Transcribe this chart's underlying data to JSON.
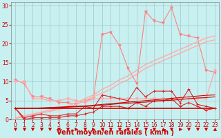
{
  "background_color": "#c8f0f0",
  "grid_color": "#a0c8c8",
  "x_values": [
    0,
    1,
    2,
    3,
    4,
    5,
    6,
    7,
    8,
    9,
    10,
    11,
    12,
    13,
    14,
    15,
    16,
    17,
    18,
    19,
    20,
    21,
    22,
    23
  ],
  "series": [
    {
      "name": "gust_pink",
      "color": "#ff8080",
      "alpha": 1.0,
      "lw": 0.8,
      "marker": "v",
      "markersize": 2.5,
      "y": [
        10.5,
        9.5,
        6.0,
        6.0,
        5.5,
        4.5,
        4.5,
        4.0,
        5.0,
        5.5,
        22.5,
        23.0,
        19.5,
        13.5,
        9.5,
        28.5,
        26.0,
        25.5,
        29.5,
        22.5,
        22.0,
        21.5,
        13.0,
        12.5
      ]
    },
    {
      "name": "trend_upper",
      "color": "#ffaaaa",
      "alpha": 1.0,
      "lw": 1.0,
      "marker": null,
      "markersize": 0,
      "y": [
        0.5,
        1.0,
        1.5,
        2.0,
        2.5,
        3.0,
        3.5,
        4.5,
        5.5,
        6.5,
        8.0,
        9.0,
        10.5,
        11.5,
        13.0,
        14.5,
        15.5,
        16.5,
        17.5,
        18.5,
        19.5,
        20.5,
        21.5,
        22.0
      ]
    },
    {
      "name": "trend_mid",
      "color": "#ffaaaa",
      "alpha": 1.0,
      "lw": 1.0,
      "marker": null,
      "markersize": 0,
      "y": [
        0.3,
        0.7,
        1.2,
        1.7,
        2.2,
        2.7,
        3.2,
        4.0,
        5.0,
        6.0,
        7.0,
        8.0,
        9.5,
        10.5,
        12.0,
        13.5,
        14.5,
        15.5,
        16.5,
        17.5,
        18.5,
        19.5,
        20.5,
        21.0
      ]
    },
    {
      "name": "flat_pink",
      "color": "#ffaaaa",
      "alpha": 1.0,
      "lw": 1.0,
      "marker": "v",
      "markersize": 2.5,
      "y": [
        10.0,
        10.0,
        5.5,
        5.5,
        5.0,
        5.0,
        5.5,
        5.0,
        4.5,
        5.5,
        5.5,
        5.5,
        5.5,
        5.5,
        5.5,
        5.5,
        5.5,
        5.5,
        5.5,
        5.5,
        5.5,
        5.5,
        5.5,
        13.0
      ]
    },
    {
      "name": "inst_upper",
      "color": "#dd2222",
      "alpha": 1.0,
      "lw": 0.8,
      "marker": "+",
      "markersize": 3,
      "y": [
        3.0,
        0.5,
        1.0,
        1.5,
        1.0,
        1.0,
        1.5,
        1.5,
        3.5,
        3.0,
        6.5,
        6.0,
        5.5,
        5.0,
        8.5,
        6.0,
        7.5,
        7.5,
        7.5,
        4.5,
        8.0,
        4.0,
        3.5,
        3.0
      ]
    },
    {
      "name": "inst_lower",
      "color": "#dd2222",
      "alpha": 1.0,
      "lw": 0.8,
      "marker": "+",
      "markersize": 3,
      "y": [
        3.0,
        0.0,
        0.5,
        0.5,
        0.5,
        0.5,
        1.0,
        1.0,
        1.5,
        2.0,
        3.5,
        3.5,
        3.5,
        3.0,
        4.5,
        3.5,
        5.0,
        5.0,
        5.5,
        3.5,
        4.5,
        3.5,
        2.5,
        3.0
      ]
    },
    {
      "name": "trend_dark_upper",
      "color": "#cc0000",
      "alpha": 1.0,
      "lw": 0.8,
      "marker": null,
      "markersize": 0,
      "y": [
        3.0,
        3.0,
        3.0,
        3.1,
        3.2,
        3.3,
        3.4,
        3.5,
        3.6,
        3.8,
        4.0,
        4.2,
        4.4,
        4.6,
        4.8,
        5.0,
        5.2,
        5.4,
        5.6,
        5.8,
        6.0,
        6.2,
        6.4,
        6.5
      ]
    },
    {
      "name": "trend_dark_lower",
      "color": "#cc0000",
      "alpha": 1.0,
      "lw": 0.8,
      "marker": null,
      "markersize": 0,
      "y": [
        3.0,
        3.0,
        3.0,
        3.0,
        3.1,
        3.2,
        3.3,
        3.4,
        3.5,
        3.6,
        3.8,
        4.0,
        4.2,
        4.3,
        4.5,
        4.6,
        4.8,
        5.0,
        5.1,
        5.3,
        5.5,
        5.7,
        5.8,
        6.0
      ]
    },
    {
      "name": "flat_dark",
      "color": "#cc0000",
      "alpha": 1.0,
      "lw": 1.2,
      "marker": null,
      "markersize": 0,
      "y": [
        3.0,
        3.0,
        3.0,
        3.0,
        3.0,
        3.0,
        3.0,
        3.0,
        3.0,
        3.0,
        3.0,
        3.0,
        3.0,
        3.0,
        3.0,
        3.0,
        3.0,
        3.0,
        3.0,
        3.0,
        3.0,
        3.0,
        3.0,
        3.0
      ]
    }
  ],
  "arrow_angles": [
    270,
    270,
    270,
    270,
    270,
    270,
    270,
    315,
    270,
    315,
    270,
    270,
    270,
    270,
    270,
    270,
    270,
    90,
    270,
    315,
    270,
    270,
    270,
    90
  ],
  "xlabel": "Vent moyen/en rafales ( km/h )",
  "xlabel_color": "#cc0000",
  "xlabel_fontsize": 7,
  "ylim": [
    0,
    31
  ],
  "xlim": [
    -0.5,
    23.5
  ],
  "yticks": [
    0,
    5,
    10,
    15,
    20,
    25,
    30
  ],
  "xticks": [
    0,
    1,
    2,
    3,
    4,
    5,
    6,
    7,
    8,
    9,
    10,
    11,
    12,
    13,
    14,
    15,
    16,
    17,
    18,
    19,
    20,
    21,
    22,
    23
  ],
  "tick_color": "#cc0000",
  "tick_fontsize": 5.5
}
